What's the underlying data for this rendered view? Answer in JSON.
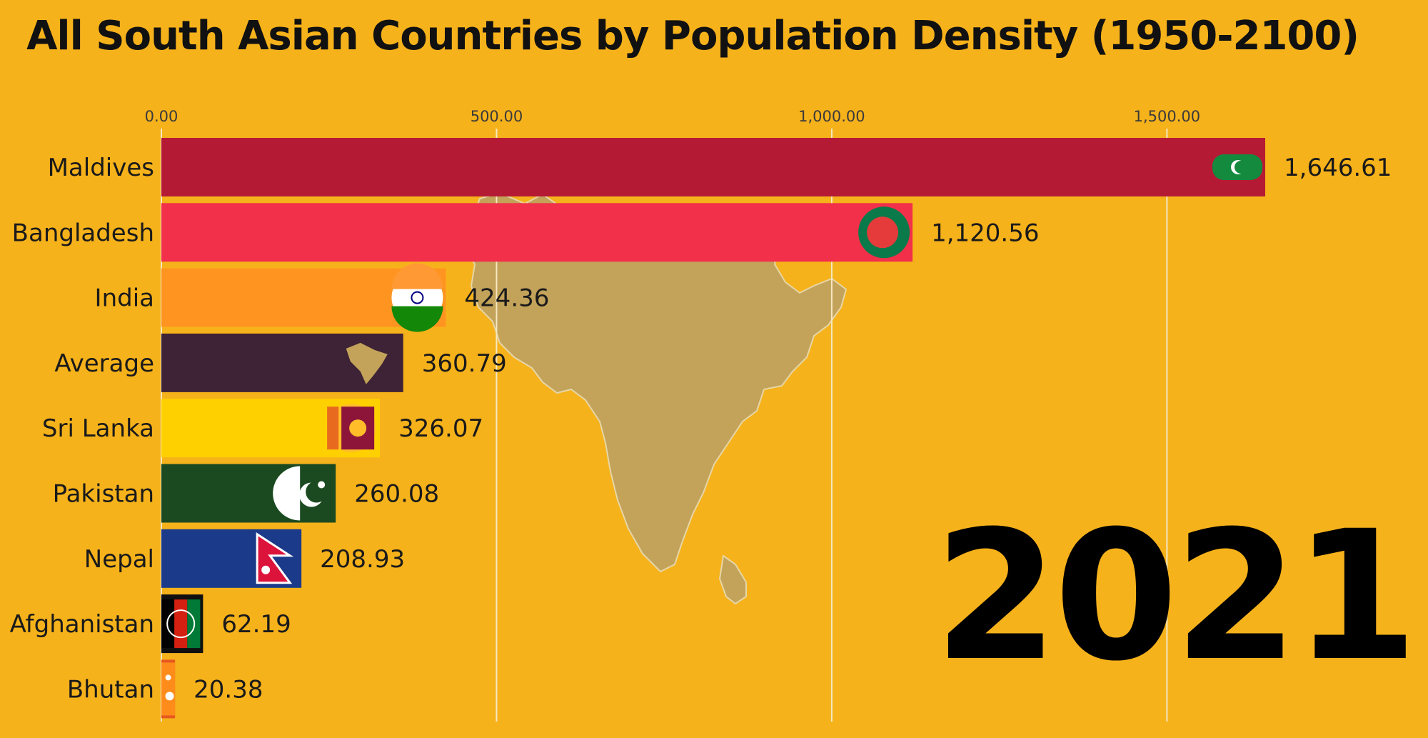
{
  "title": "All South Asian Countries by Population Density (1950-2100)",
  "year": "2021",
  "colors": {
    "background": "#f6b21b",
    "map": "#c3a25a",
    "gridline": "#f5e7c0"
  },
  "chart_data": {
    "type": "bar",
    "orientation": "horizontal",
    "title": "All South Asian Countries by Population Density (1950-2100)",
    "xlim": [
      0,
      1646.61
    ],
    "ticks": [
      0,
      500,
      1000,
      1500
    ],
    "tick_labels": [
      "0.00",
      "500.00",
      "1,000.00",
      "1,500.00"
    ],
    "grid": true,
    "categories": [
      "Maldives",
      "Bangladesh",
      "India",
      "Average",
      "Sri Lanka",
      "Pakistan",
      "Nepal",
      "Afghanistan",
      "Bhutan"
    ],
    "values": [
      1646.61,
      1120.56,
      424.36,
      360.79,
      326.07,
      260.08,
      208.93,
      62.19,
      20.38
    ],
    "value_labels": [
      "1,646.61",
      "1,120.56",
      "424.36",
      "360.79",
      "326.07",
      "260.08",
      "208.93",
      "62.19",
      "20.38"
    ],
    "bar_colors": [
      "#b51a35",
      "#f2304a",
      "#ff9520",
      "#3d2335",
      "#ffd000",
      "#1b4a20",
      "#1b3a8a",
      "#101010",
      "#e8571f"
    ],
    "icons": [
      "maldives-flag-icon",
      "bangladesh-flag-icon",
      "india-flag-icon",
      "south-asia-map-icon",
      "sri-lanka-flag-icon",
      "pakistan-flag-icon",
      "nepal-flag-icon",
      "afghanistan-flag-icon",
      "bhutan-flag-icon"
    ]
  }
}
